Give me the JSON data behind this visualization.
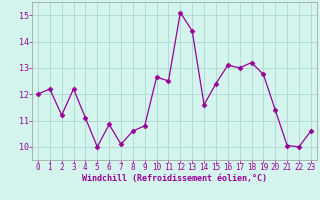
{
  "x": [
    0,
    1,
    2,
    3,
    4,
    5,
    6,
    7,
    8,
    9,
    10,
    11,
    12,
    13,
    14,
    15,
    16,
    17,
    18,
    19,
    20,
    21,
    22,
    23
  ],
  "y": [
    12.0,
    12.2,
    11.2,
    12.2,
    11.1,
    10.0,
    10.85,
    10.1,
    10.6,
    10.8,
    12.65,
    12.5,
    15.1,
    14.4,
    11.6,
    12.4,
    13.1,
    13.0,
    13.2,
    12.75,
    11.4,
    10.05,
    10.0,
    10.6
  ],
  "line_color": "#990099",
  "marker": "D",
  "marker_size": 2.5,
  "bg_color": "#d4f5ee",
  "grid_color": "#aed8d0",
  "xlabel": "Windchill (Refroidissement éolien,°C)",
  "xlabel_color": "#990099",
  "tick_color": "#990099",
  "spine_color": "#999999",
  "ylim": [
    9.5,
    15.5
  ],
  "xlim": [
    -0.5,
    23.5
  ],
  "yticks": [
    10,
    11,
    12,
    13,
    14,
    15
  ],
  "xticks": [
    0,
    1,
    2,
    3,
    4,
    5,
    6,
    7,
    8,
    9,
    10,
    11,
    12,
    13,
    14,
    15,
    16,
    17,
    18,
    19,
    20,
    21,
    22,
    23
  ],
  "tick_fontsize": 5.5,
  "xlabel_fontsize": 6.0
}
